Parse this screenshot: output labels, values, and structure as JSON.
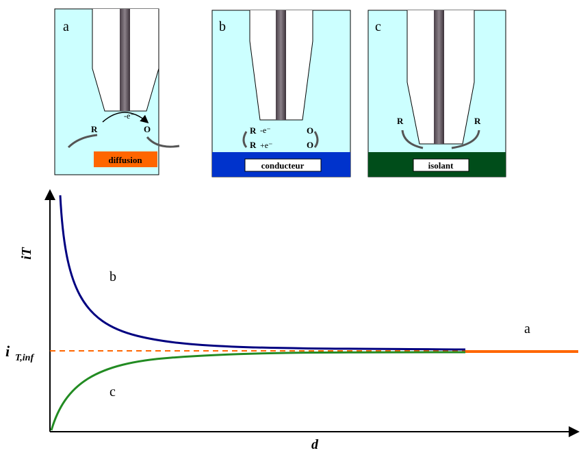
{
  "panels": [
    {
      "label": "a",
      "reactant": "R",
      "product": "O",
      "reaction": "-e⁻",
      "caption": "diffusion"
    },
    {
      "label": "b",
      "reactant": "R",
      "product": "O",
      "reaction": "-e⁻",
      "reverse_reactant": "R",
      "reverse_product": "O",
      "reverse_reaction": "+e⁻",
      "caption": "conducteur"
    },
    {
      "label": "c",
      "reactant": "R",
      "product": "R",
      "caption": "isolant"
    }
  ],
  "graph": {
    "y_axis_label": "iT",
    "x_axis_label": "d",
    "reference": {
      "symbol": "i",
      "subscript": "T,inf"
    },
    "curve_labels": {
      "conductor": "b",
      "insulator": "c",
      "diffusion": "a"
    }
  }
}
